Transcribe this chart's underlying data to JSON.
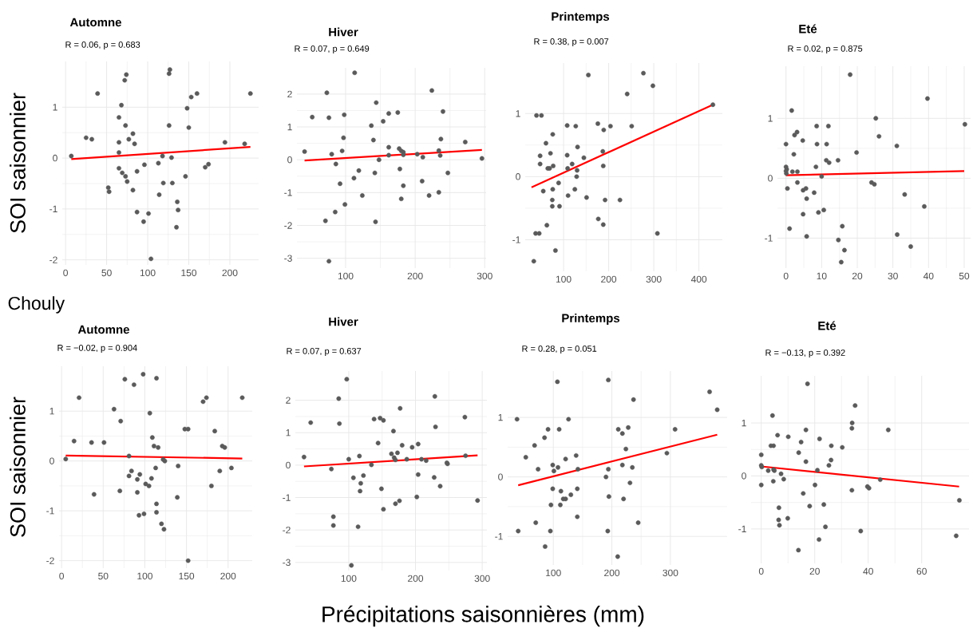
{
  "chart_data": [
    {
      "type": "scatter",
      "title": "Automne",
      "subtitle": "R = 0.06, p = 0.683",
      "ylabel": "SOI saisonnier",
      "xlim": [
        -4,
        235
      ],
      "ylim": [
        -2.1,
        1.9
      ],
      "xticks": [
        0,
        50,
        100,
        150,
        200
      ],
      "yticks": [
        -2,
        -1,
        0,
        1
      ],
      "grid": true,
      "series": [
        {
          "marker": "circle",
          "color": "#5a5a5a",
          "x": [
            7,
            25,
            32,
            39,
            52,
            53,
            65,
            65,
            65,
            65,
            68,
            72,
            74,
            73,
            69,
            73,
            75,
            77,
            82,
            84,
            82,
            87,
            87,
            95,
            101,
            96,
            104,
            113,
            114,
            118,
            119,
            126,
            126,
            127,
            129,
            130,
            135,
            136,
            137,
            146,
            148,
            150,
            153,
            160,
            170,
            174,
            194,
            218,
            225
          ],
          "values": [
            0.04,
            0.4,
            0.37,
            1.27,
            -0.58,
            -0.66,
            0.8,
            0.31,
            0.11,
            -0.2,
            1.04,
            1.53,
            1.64,
            0.64,
            -0.29,
            -0.36,
            -0.46,
            0.37,
            0.48,
            0.28,
            -0.63,
            -0.26,
            -1.06,
            -1.25,
            -1.09,
            -0.13,
            -1.98,
            -0.1,
            -0.72,
            0.04,
            -0.49,
            0.64,
            1.66,
            1.74,
            0.01,
            -0.49,
            -1.36,
            -0.86,
            -1.02,
            -0.36,
            0.98,
            0.6,
            1.2,
            1.27,
            -0.18,
            -0.12,
            0.31,
            0.28,
            1.27
          ]
        },
        {
          "type": "line",
          "color": "#ff0000",
          "x": [
            7,
            225
          ],
          "values": [
            -0.02,
            0.22
          ]
        }
      ]
    },
    {
      "type": "scatter",
      "title": "Hiver",
      "subtitle": "R = 0.07, p = 0.649",
      "xlim": [
        30,
        302
      ],
      "ylim": [
        -3.3,
        2.8
      ],
      "xticks": [
        100,
        200,
        300
      ],
      "yticks": [
        -3,
        -2,
        -1,
        0,
        1,
        2
      ],
      "grid": true,
      "series": [
        {
          "marker": "circle",
          "color": "#5a5a5a",
          "x": [
            41,
            52,
            71,
            73,
            76,
            76,
            80,
            85,
            86,
            92,
            95,
            97,
            98,
            99,
            112,
            113,
            119,
            124,
            137,
            140,
            142,
            143,
            144,
            148,
            154,
            162,
            162,
            162,
            175,
            177,
            178,
            180,
            180,
            183,
            183,
            183,
            203,
            210,
            211,
            220,
            224,
            234,
            234,
            236,
            237,
            240,
            247,
            272,
            296
          ],
          "values": [
            0.25,
            1.3,
            -1.86,
            2.04,
            1.28,
            -3.09,
            0.17,
            -1.59,
            -0.13,
            -0.73,
            0.27,
            0.67,
            1.37,
            -1.36,
            -0.56,
            2.65,
            -0.33,
            -1.09,
            1.04,
            0.6,
            -0.4,
            -1.89,
            1.74,
            0,
            1.17,
            0.14,
            1.41,
            0.38,
            1.44,
            0.34,
            -0.28,
            -1.19,
            0.27,
            0.23,
            -0.79,
            0.15,
            0.17,
            -0.65,
            0.08,
            -1.09,
            2.11,
            0.28,
            -0.99,
            0.13,
            0.63,
            1.47,
            -0.4,
            0.54,
            0.04
          ]
        },
        {
          "type": "line",
          "color": "#ff0000",
          "x": [
            41,
            296
          ],
          "values": [
            -0.02,
            0.3
          ]
        }
      ]
    },
    {
      "type": "scatter",
      "title": "Printemps",
      "subtitle": "R = 0.38, p = 0.007",
      "xlim": [
        15,
        452
      ],
      "ylim": [
        -1.5,
        1.8
      ],
      "xticks": [
        100,
        200,
        300,
        400
      ],
      "yticks": [
        -1,
        0,
        1
      ],
      "grid": true,
      "series": [
        {
          "marker": "circle",
          "color": "#5a5a5a",
          "x": [
            34,
            38,
            40,
            46,
            48,
            48,
            51,
            55,
            61,
            63,
            65,
            69,
            71,
            75,
            75,
            76,
            76,
            77,
            82,
            89,
            91,
            108,
            108,
            109,
            110,
            119,
            125,
            127,
            130,
            129,
            131,
            145,
            151,
            155,
            176,
            177,
            187,
            188,
            188,
            189,
            192,
            204,
            225,
            241,
            251,
            277,
            298,
            308,
            431
          ],
          "values": [
            -1.34,
            -0.9,
            0.97,
            -0.9,
            0.2,
            0.33,
            0.97,
            -0.23,
            0.53,
            -0.77,
            0.13,
            0.13,
            0.37,
            -0.37,
            -0.47,
            -0.2,
            0.67,
            0.17,
            -1.17,
            -0.1,
            -0.47,
            0.34,
            0.81,
            0.13,
            -0.3,
            0.2,
            -0.2,
            0.8,
            0.1,
            0,
            0.47,
            0.3,
            -0.33,
            1.61,
            0.84,
            -0.67,
            0.4,
            0.17,
            -0.76,
            0.74,
            -0.37,
            0.8,
            -0.37,
            1.31,
            0.8,
            1.64,
            1.44,
            -0.9,
            1.14
          ]
        },
        {
          "type": "line",
          "color": "#ff0000",
          "x": [
            29,
            431
          ],
          "values": [
            -0.17,
            1.14
          ]
        }
      ]
    },
    {
      "type": "scatter",
      "title": "Eté",
      "subtitle": "R = 0.02, p = 0.875",
      "xlim": [
        -2.4,
        51.8
      ],
      "ylim": [
        -1.5,
        1.87
      ],
      "xticks": [
        0,
        10,
        20,
        30,
        40,
        50
      ],
      "yticks": [
        -1,
        0,
        1
      ],
      "grid": true,
      "series": [
        {
          "marker": "circle",
          "color": "#5a5a5a",
          "x": [
            0,
            0,
            0.2,
            0.1,
            0,
            0.4,
            1,
            1.6,
            1.8,
            2.2,
            2.4,
            3.1,
            3.2,
            3.2,
            4.7,
            4.8,
            4.8,
            5.6,
            5.8,
            5.8,
            7.9,
            8.4,
            8.6,
            8.7,
            9.1,
            10,
            10.6,
            11.3,
            11.4,
            11.9,
            12.1,
            14.6,
            14.7,
            15.5,
            15.8,
            16.4,
            18,
            19.8,
            24,
            24.8,
            25.2,
            26.1,
            31.1,
            31.2,
            33.3,
            35,
            38.8,
            39.7,
            50.2
          ],
          "values": [
            0.57,
            0.19,
            0.15,
            0.08,
            0.12,
            -0.17,
            -0.84,
            1.13,
            0.11,
            0.4,
            0.72,
            0.77,
            0.11,
            -0.07,
            0.63,
            -0.2,
            -0.6,
            -0.17,
            -0.34,
            -0.97,
            -0.24,
            0.19,
            0.87,
            0.57,
            -0.57,
            0.03,
            -0.53,
            0.3,
            0.57,
            0.87,
            0.26,
            0.3,
            -1.03,
            -1.4,
            -0.8,
            -1.2,
            1.73,
            0.43,
            -0.07,
            -0.1,
            1.0,
            0.7,
            0.54,
            -0.94,
            -0.27,
            -1.14,
            -0.47,
            1.33,
            0.9
          ]
        },
        {
          "type": "line",
          "color": "#ff0000",
          "x": [
            0,
            50
          ],
          "values": [
            0.05,
            0.12
          ]
        }
      ]
    },
    {
      "type": "scatter",
      "title": "Automne",
      "subtitle": "R = −0.02, p = 0.904",
      "ylabel": "SOI saisonnier",
      "annotations": [
        "Chouly"
      ],
      "xlim": [
        -3,
        229
      ],
      "ylim": [
        -2.15,
        1.9
      ],
      "xticks": [
        0,
        50,
        100,
        150,
        200
      ],
      "yticks": [
        -2,
        -1,
        0,
        1
      ],
      "grid": true,
      "series": [
        {
          "marker": "circle",
          "color": "#5a5a5a",
          "x": [
            5,
            15,
            21,
            36,
            39,
            51,
            63,
            70,
            71,
            76,
            81,
            81,
            84,
            87,
            91,
            91,
            93,
            94,
            98,
            99,
            101,
            105,
            106,
            108,
            109,
            111,
            113,
            114,
            114,
            114,
            116,
            120,
            122,
            123,
            124,
            139,
            140,
            148,
            152,
            152,
            170,
            174,
            180,
            184,
            190,
            193,
            196,
            204,
            217
          ],
          "values": [
            0.04,
            0.4,
            1.27,
            0.37,
            -0.67,
            0.37,
            1.04,
            -0.6,
            0.8,
            1.64,
            0.1,
            -0.3,
            -0.2,
            1.53,
            -0.37,
            -0.63,
            -1.09,
            -0.27,
            1.74,
            -1.06,
            -0.46,
            -0.5,
            0.96,
            -0.35,
            0.47,
            0.3,
            -0.14,
            1.66,
            -0.86,
            -1.03,
            0.27,
            -1.26,
            0.03,
            -1.37,
            0,
            -0.73,
            -0.1,
            0.64,
            0.64,
            -2.0,
            1.19,
            1.27,
            -0.5,
            0.6,
            -0.2,
            0.3,
            0.27,
            -0.14,
            1.27
          ]
        },
        {
          "type": "line",
          "color": "#ff0000",
          "x": [
            5,
            217
          ],
          "values": [
            0.11,
            0.05
          ]
        }
      ]
    },
    {
      "type": "scatter",
      "title": "Hiver",
      "subtitle": "R = 0.07, p = 0.637",
      "xlabel": "Précipitations saisonnières (mm)",
      "xlim": [
        20,
        307
      ],
      "ylim": [
        -3.25,
        2.9
      ],
      "xticks": [
        100,
        200,
        300
      ],
      "yticks": [
        -3,
        -2,
        -1,
        0,
        1,
        2
      ],
      "grid": true,
      "series": [
        {
          "marker": "circle",
          "color": "#5a5a5a",
          "x": [
            33,
            43,
            74,
            77,
            77,
            85,
            86,
            97,
            100,
            104,
            107,
            114,
            116,
            118,
            117,
            122,
            134,
            138,
            144,
            147,
            149,
            152,
            152,
            164,
            167,
            168,
            170,
            170,
            173,
            177,
            176,
            180,
            187,
            195,
            202,
            204,
            204,
            209,
            216,
            228,
            229,
            230,
            237,
            247,
            248,
            274,
            275,
            293
          ],
          "values": [
            0.25,
            1.31,
            -0.12,
            -1.59,
            -1.86,
            2.05,
            1.28,
            2.65,
            0.18,
            -3.09,
            -0.39,
            -1.9,
            0.28,
            -0.56,
            -0.8,
            -0.32,
            0.01,
            1.42,
            0.68,
            1.45,
            -0.73,
            1.38,
            -1.36,
            0.35,
            1.05,
            0.23,
            0.16,
            -1.19,
            0.38,
            1.75,
            -1.1,
            0.61,
            0.18,
            0.55,
            -0.98,
            0.65,
            -0.29,
            0.18,
            0.14,
            -0.38,
            2.12,
            1.18,
            -0.65,
            0.07,
            0.04,
            1.48,
            0.29,
            -1.09
          ]
        },
        {
          "type": "line",
          "color": "#ff0000",
          "x": [
            33,
            293
          ],
          "values": [
            -0.04,
            0.3
          ]
        }
      ]
    },
    {
      "type": "scatter",
      "title": "Printemps",
      "subtitle": "R = 0.28, p = 0.051",
      "xlim": [
        22,
        397
      ],
      "ylim": [
        -1.48,
        1.78
      ],
      "xticks": [
        100,
        200,
        300
      ],
      "yticks": [
        -1,
        0,
        1
      ],
      "grid": true,
      "series": [
        {
          "marker": "circle",
          "color": "#5a5a5a",
          "x": [
            38,
            40,
            53,
            68,
            74,
            70,
            85,
            86,
            91,
            95,
            96,
            99,
            99,
            101,
            107,
            108,
            110,
            112,
            113,
            117,
            121,
            121,
            126,
            130,
            139,
            141,
            141,
            142,
            190,
            194,
            193,
            194,
            195,
            211,
            210,
            218,
            218,
            220,
            224,
            228,
            231,
            235,
            237,
            245,
            294,
            308,
            367,
            380
          ],
          "values": [
            0.97,
            -0.91,
            0.33,
            0.53,
            0.13,
            -0.77,
            0.66,
            -1.17,
            0.8,
            -0.91,
            -0.47,
            -0.2,
            0.2,
            0.1,
            1.6,
            0.16,
            0.8,
            -0.47,
            -0.24,
            -0.37,
            -0.37,
            0.3,
            0.97,
            -0.3,
            0.36,
            -0.2,
            -0.67,
            0.13,
            0,
            1.63,
            -0.91,
            0.13,
            -0.33,
            0.8,
            -1.34,
            0.73,
            0.2,
            -0.37,
            0.47,
            0.83,
            -0.1,
            0.16,
            1.3,
            -0.77,
            0.4,
            0.8,
            1.43,
            1.13
          ]
        },
        {
          "type": "line",
          "color": "#ff0000",
          "x": [
            40,
            380
          ],
          "values": [
            -0.14,
            0.71
          ]
        }
      ]
    },
    {
      "type": "scatter",
      "title": "Eté",
      "subtitle": "R = −0.13, p = 0.392",
      "xlim": [
        -3.8,
        77.7
      ],
      "ylim": [
        -1.65,
        1.89
      ],
      "xticks": [
        0,
        20,
        40,
        60
      ],
      "yticks": [
        -1,
        0,
        1
      ],
      "grid": true,
      "series": [
        {
          "marker": "circle",
          "color": "#5a5a5a",
          "x": [
            0,
            0,
            0.2,
            0,
            2.6,
            4.2,
            3.6,
            4.6,
            4.6,
            4.9,
            4.5,
            6.1,
            6.6,
            6.5,
            6.8,
            7.4,
            8.4,
            9.9,
            10.1,
            14,
            13.9,
            14.9,
            15.7,
            16.7,
            16.7,
            17.3,
            18.1,
            20.1,
            21,
            21.6,
            21.8,
            23.4,
            24,
            25.3,
            26.1,
            26.2,
            30.3,
            33.9,
            33.9,
            34,
            35.1,
            37.2,
            39.7,
            40.3,
            44.5,
            47.5,
            72.9,
            74.1
          ],
          "values": [
            0.4,
            0.2,
            0.17,
            -0.17,
            0.1,
            1.14,
            0.57,
            0.57,
            0.12,
            0.1,
            -0.1,
            0.77,
            -0.6,
            -0.83,
            -0.93,
            0.04,
            -0.06,
            -0.8,
            0.74,
            0.44,
            -1.4,
            0.64,
            -0.33,
            0.87,
            0.27,
            1.74,
            -0.57,
            -0.17,
            0.11,
            -1.2,
            0.7,
            -0.54,
            -0.96,
            0.2,
            0.3,
            0.57,
            0.54,
            -0.27,
            0.9,
            1.0,
            1.33,
            -1.04,
            -0.2,
            -0.23,
            -0.07,
            0.87,
            -1.13,
            -0.46
          ]
        },
        {
          "type": "line",
          "color": "#ff0000",
          "x": [
            0,
            74
          ],
          "values": [
            0.18,
            -0.2
          ]
        }
      ]
    }
  ]
}
